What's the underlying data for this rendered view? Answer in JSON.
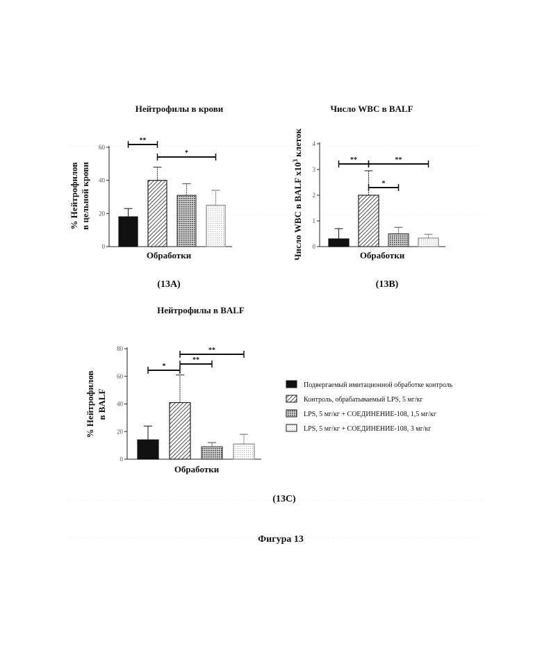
{
  "figure_caption": "Фигура 13",
  "legend": [
    {
      "label": "Подвергаемый имитационной обработке контроль",
      "pattern": "solid"
    },
    {
      "label": "Контроль, обрабатываемый LPS, 5 мг/кг",
      "pattern": "hatch"
    },
    {
      "label": "LPS, 5 мг/кг + СОЕДИНЕНИЕ-108, 1,5 мг/кг",
      "pattern": "dense"
    },
    {
      "label": "LPS, 5 мг/кг + СОЕДИНЕНИЕ-108, 3 мг/кг",
      "pattern": "light"
    }
  ],
  "chart_data": [
    {
      "type": "bar",
      "panel_label": "(13A)",
      "title": "Нейтрофилы в крови",
      "ylabel_lines": [
        "% Нейтрофилов",
        "в цельной крови"
      ],
      "xlabel": "Обработки",
      "ylim": [
        0,
        60
      ],
      "ytick_labels": [
        "0",
        "20",
        "40",
        "60"
      ],
      "values": [
        18,
        40,
        31,
        25
      ],
      "errors": [
        5,
        8,
        7,
        9
      ],
      "significance": [
        {
          "from": 0,
          "to": 1,
          "label": "**"
        },
        {
          "from": 1,
          "to": 3,
          "label": "*"
        }
      ]
    },
    {
      "type": "bar",
      "panel_label": "(13B)",
      "title": "Число WBC в BALF",
      "ylabel_lines": [
        "Число WBC в BALF x10",
        "3",
        " клеток"
      ],
      "xlabel": "Обработки",
      "ylim": [
        0,
        4
      ],
      "ytick_labels": [
        "0",
        "1",
        "2",
        "3",
        "4"
      ],
      "values": [
        0.3,
        2.0,
        0.5,
        0.33
      ],
      "errors": [
        0.4,
        0.95,
        0.25,
        0.15
      ],
      "significance": [
        {
          "from": 0,
          "to": 1,
          "label": "**"
        },
        {
          "from": 1,
          "to": 3,
          "label": "**"
        },
        {
          "from": 1,
          "to": 2,
          "label": "*"
        }
      ]
    },
    {
      "type": "bar",
      "panel_label": "(13C)",
      "title": "Нейтрофилы в BALF",
      "ylabel_lines": [
        "% Нейтрофилов",
        "в BALF"
      ],
      "xlabel": "Обработки",
      "ylim": [
        0,
        80
      ],
      "ytick_labels": [
        "0",
        "20",
        "40",
        "60",
        "80"
      ],
      "values": [
        14,
        41,
        9,
        11
      ],
      "errors": [
        10,
        20,
        3,
        7
      ],
      "significance": [
        {
          "from": 0,
          "to": 1,
          "label": "*"
        },
        {
          "from": 1,
          "to": 2,
          "label": "**"
        },
        {
          "from": 1,
          "to": 3,
          "label": "**"
        }
      ]
    }
  ]
}
